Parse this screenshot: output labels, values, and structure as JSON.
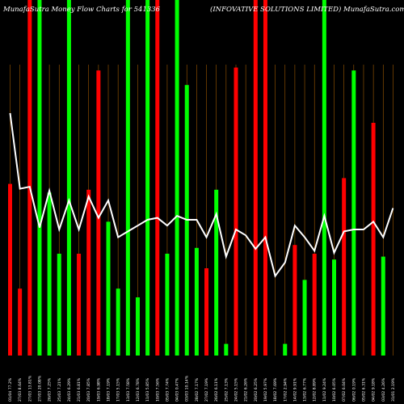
{
  "chart_data": {
    "type": "bar",
    "title_left": "MunafaSutra  Money Flow  Charts for 541336",
    "title_right": "(INFOVATIVE SOLUTIONS LIMITED) MunafaSutra.com",
    "colors": {
      "up": "#00ff00",
      "down": "#ff0000",
      "line": "#ffffff",
      "grid": "#a05a00",
      "background": "#000000"
    },
    "categories": [
      "01/04 77.2%",
      "27/03 8.64%",
      "27/03 13.81%",
      "27/03 20.08%",
      "26/03 7.25%",
      "25/03 7.21%",
      "24/03 6.29%",
      "21/03 6.81%",
      "20/03 7.85%",
      "19/03 6.98%",
      "18/03 7.19%",
      "17/03 5.15%",
      "13/03 7.58%",
      "12/03 6.78%",
      "11/03 5.85%",
      "10/03 7.56%",
      "05/03 7.74%",
      "04/03 0.47%",
      "03/03 10.14%",
      "28/02 7.17%",
      "27/02 7.19%",
      "26/02 6.11%",
      "25/02 7.13%",
      "24/02 5.15%",
      "21/02 6.26%",
      "20/02 6.25%",
      "19/02 5.97%",
      "18/02 7.69%",
      "17/02 2.94%",
      "14/02 9.91%",
      "13/02 6.77%",
      "12/02 8.89%",
      "11/02 9.24%",
      "10/02 6.05%",
      "07/02 6.04%",
      "06/02 0.19%",
      "05/02 6.31%",
      "04/02 9.18%",
      "03/02 4.26%",
      "31/01 2.19%"
    ],
    "values": [
      59,
      23,
      160,
      160,
      56,
      35,
      160,
      35,
      57,
      98,
      46,
      23,
      160,
      20,
      160,
      160,
      35,
      160,
      93,
      37,
      30,
      57,
      4,
      99,
      0,
      120,
      160,
      0,
      4,
      38,
      26,
      35,
      100,
      33,
      61,
      98,
      0,
      80,
      34,
      0
    ],
    "colors_per_bar": [
      "down",
      "down",
      "down",
      "up",
      "up",
      "up",
      "up",
      "down",
      "down",
      "down",
      "up",
      "up",
      "up",
      "up",
      "up",
      "down",
      "up",
      "up",
      "up",
      "up",
      "down",
      "up",
      "up",
      "down",
      "up",
      "down",
      "down",
      "up",
      "up",
      "down",
      "up",
      "down",
      "up",
      "up",
      "down",
      "up",
      "up",
      "down",
      "up",
      "down"
    ],
    "line": [
      12.5,
      8.6,
      8.7,
      6.6,
      8.5,
      6.5,
      8.0,
      6.5,
      8.2,
      7.1,
      8.0,
      6.1,
      6.4,
      6.7,
      7.0,
      7.1,
      6.7,
      7.2,
      7.0,
      7.0,
      6.1,
      7.3,
      5.1,
      6.5,
      6.2,
      5.5,
      6.1,
      4.1,
      4.8,
      6.7,
      6.1,
      5.4,
      7.2,
      5.3,
      6.4,
      6.5,
      6.5,
      6.9,
      6.1,
      7.6
    ],
    "bar_heights_rel": [
      0.59,
      0.23,
      1.0,
      1.0,
      0.56,
      0.35,
      1.0,
      0.35,
      0.57,
      0.98,
      0.46,
      0.23,
      1.0,
      0.2,
      1.0,
      1.0,
      0.35,
      1.0,
      0.93,
      0.37,
      0.3,
      0.57,
      0.04,
      0.99,
      0.0,
      1.0,
      1.0,
      0.0,
      0.04,
      0.38,
      0.26,
      0.35,
      1.0,
      0.33,
      0.61,
      0.98,
      0.0,
      0.8,
      0.34,
      0.0
    ]
  }
}
